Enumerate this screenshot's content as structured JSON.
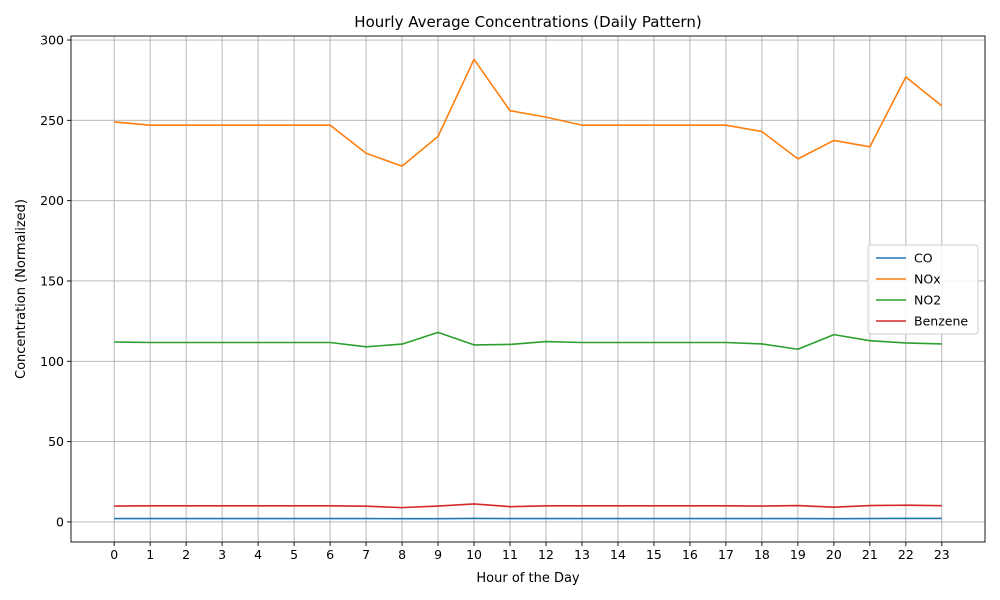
{
  "chart_data": {
    "type": "line",
    "title": "Hourly Average Concentrations (Daily Pattern)",
    "xlabel": "Hour of the Day",
    "ylabel": "Concentration (Normalized)",
    "x": [
      0,
      1,
      2,
      3,
      4,
      5,
      6,
      7,
      8,
      9,
      10,
      11,
      12,
      13,
      14,
      15,
      16,
      17,
      18,
      19,
      20,
      21,
      22,
      23
    ],
    "xlim": [
      -1.2,
      24.2
    ],
    "ylim": [
      -12.5,
      302.5
    ],
    "yticks": [
      0,
      50,
      100,
      150,
      200,
      250,
      300
    ],
    "grid": true,
    "legend_position": "center-right",
    "series": [
      {
        "name": "CO",
        "color": "#1f77b4",
        "values": [
          2.1,
          2.1,
          2.1,
          2.1,
          2.1,
          2.1,
          2.1,
          2.1,
          2.0,
          2.0,
          2.2,
          2.1,
          2.1,
          2.1,
          2.1,
          2.1,
          2.1,
          2.1,
          2.1,
          2.1,
          2.0,
          2.1,
          2.2,
          2.2
        ]
      },
      {
        "name": "NOx",
        "color": "#ff7f0e",
        "values": [
          249,
          247,
          247,
          247,
          247,
          247,
          247,
          229.5,
          221.5,
          240,
          288,
          256,
          252,
          247,
          247,
          247,
          247,
          247,
          243,
          226,
          237.5,
          233.5,
          277,
          259
        ]
      },
      {
        "name": "NO2",
        "color": "#2ca02c",
        "values": [
          112,
          111.7,
          111.7,
          111.7,
          111.7,
          111.7,
          111.7,
          109,
          110.7,
          118,
          110.2,
          110.5,
          112.3,
          111.7,
          111.7,
          111.7,
          111.7,
          111.7,
          110.8,
          107.5,
          116.6,
          112.8,
          111.4,
          110.8
        ]
      },
      {
        "name": "Benzene",
        "color": "#d62728",
        "values": [
          9.9,
          10.0,
          10.0,
          10.0,
          10.0,
          10.0,
          10.0,
          9.8,
          8.9,
          9.9,
          11.2,
          9.5,
          10.0,
          10.0,
          10.0,
          10.0,
          10.0,
          10.0,
          9.9,
          10.2,
          9.2,
          10.2,
          10.4,
          10.1
        ]
      }
    ]
  }
}
